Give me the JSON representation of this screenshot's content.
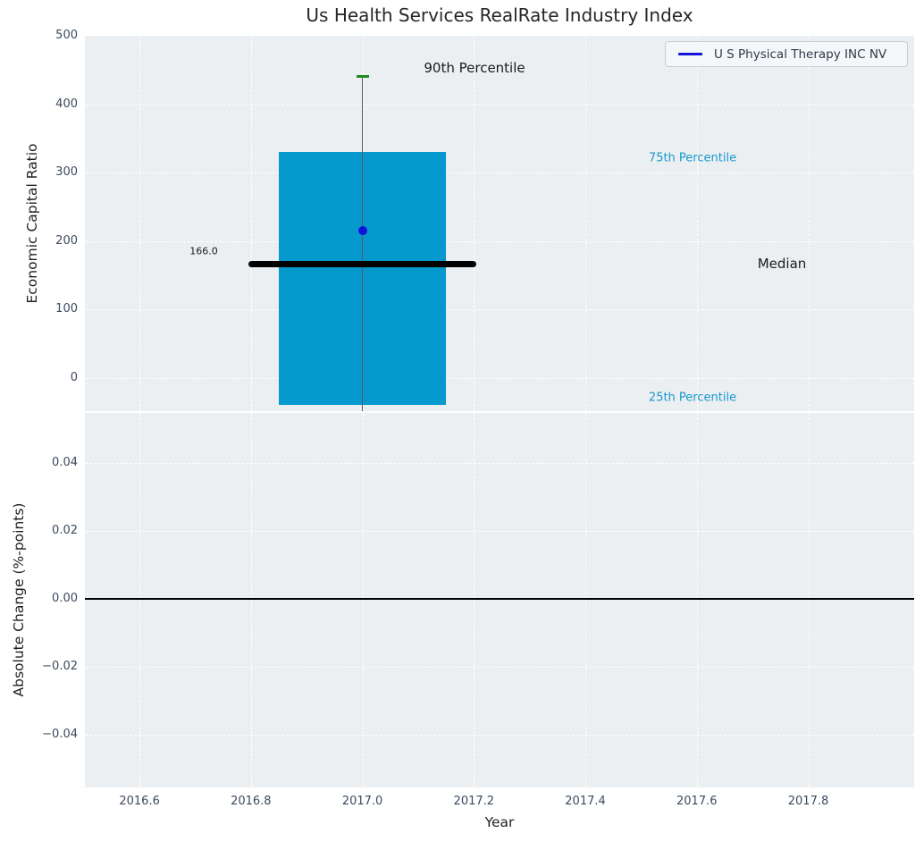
{
  "title": "Us Health Services RealRate Industry Index",
  "colors": {
    "bar": "#0699CD",
    "percentile_text": "#1599CF",
    "company": "#1212DD",
    "cap90": "#1E8C1E",
    "whisker": "#55595E",
    "median_line": "#000000",
    "axes_bg": "#ECEFF1",
    "grid": "#FFFFFF",
    "tick_text": "#3C4A5E"
  },
  "top_chart": {
    "ylabel": "Economic Capital Ratio",
    "legend": {
      "label": "U S Physical Therapy INC NV"
    },
    "annotations": {
      "median_value": "166.0",
      "p90": "90th Percentile",
      "p75": "75th Percentile",
      "p25": "25th Percentile",
      "median": "Median"
    }
  },
  "bottom_chart": {
    "ylabel": "Absolute Change (%-points)",
    "xlabel": "Year"
  },
  "chart_data": [
    {
      "type": "box",
      "title": "Us Health Services RealRate Industry Index",
      "ylabel": "Economic Capital Ratio",
      "x_center": 2017.0,
      "box_width_years": 0.3,
      "percentiles": {
        "p25": -39,
        "median": 166,
        "p75": 330,
        "p90": 440
      },
      "median_line_span": [
        2016.8,
        2017.2
      ],
      "whisker": {
        "top": 440,
        "bottom_clipped_below_axis": true
      },
      "company_point": {
        "name": "U S Physical Therapy INC NV",
        "x": 2017.0,
        "y": 215
      },
      "annotations": [
        "166.0",
        "90th Percentile",
        "75th Percentile",
        "25th Percentile",
        "Median"
      ],
      "ylim": [
        -48.4,
        500
      ],
      "xlim": [
        2016.5,
        2017.99
      ],
      "yticks": [
        {
          "value": 0,
          "label": "0"
        },
        {
          "value": 100,
          "label": "100"
        },
        {
          "value": 200,
          "label": "200"
        },
        {
          "value": 300,
          "label": "300"
        },
        {
          "value": 400,
          "label": "400"
        },
        {
          "value": 500,
          "label": "500"
        }
      ],
      "grid": "white-dashed",
      "legend_position": "upper-right"
    },
    {
      "type": "line",
      "ylabel": "Absolute Change (%-points)",
      "xlabel": "Year",
      "series": [],
      "zero_line_y": 0.0,
      "ylim": [
        -0.0557,
        0.0549
      ],
      "xlim": [
        2016.5,
        2017.99
      ],
      "yticks": [
        {
          "value": 0.04,
          "label": "0.04"
        },
        {
          "value": 0.02,
          "label": "0.02"
        },
        {
          "value": 0.0,
          "label": "0.00"
        },
        {
          "value": -0.02,
          "label": "−0.02"
        },
        {
          "value": -0.04,
          "label": "−0.04"
        }
      ],
      "xticks": [
        {
          "value": 2016.6,
          "label": "2016.6"
        },
        {
          "value": 2016.8,
          "label": "2016.8"
        },
        {
          "value": 2017.0,
          "label": "2017.0"
        },
        {
          "value": 2017.2,
          "label": "2017.2"
        },
        {
          "value": 2017.4,
          "label": "2017.4"
        },
        {
          "value": 2017.6,
          "label": "2017.6"
        },
        {
          "value": 2017.8,
          "label": "2017.8"
        }
      ],
      "grid": "white-dashed"
    }
  ]
}
